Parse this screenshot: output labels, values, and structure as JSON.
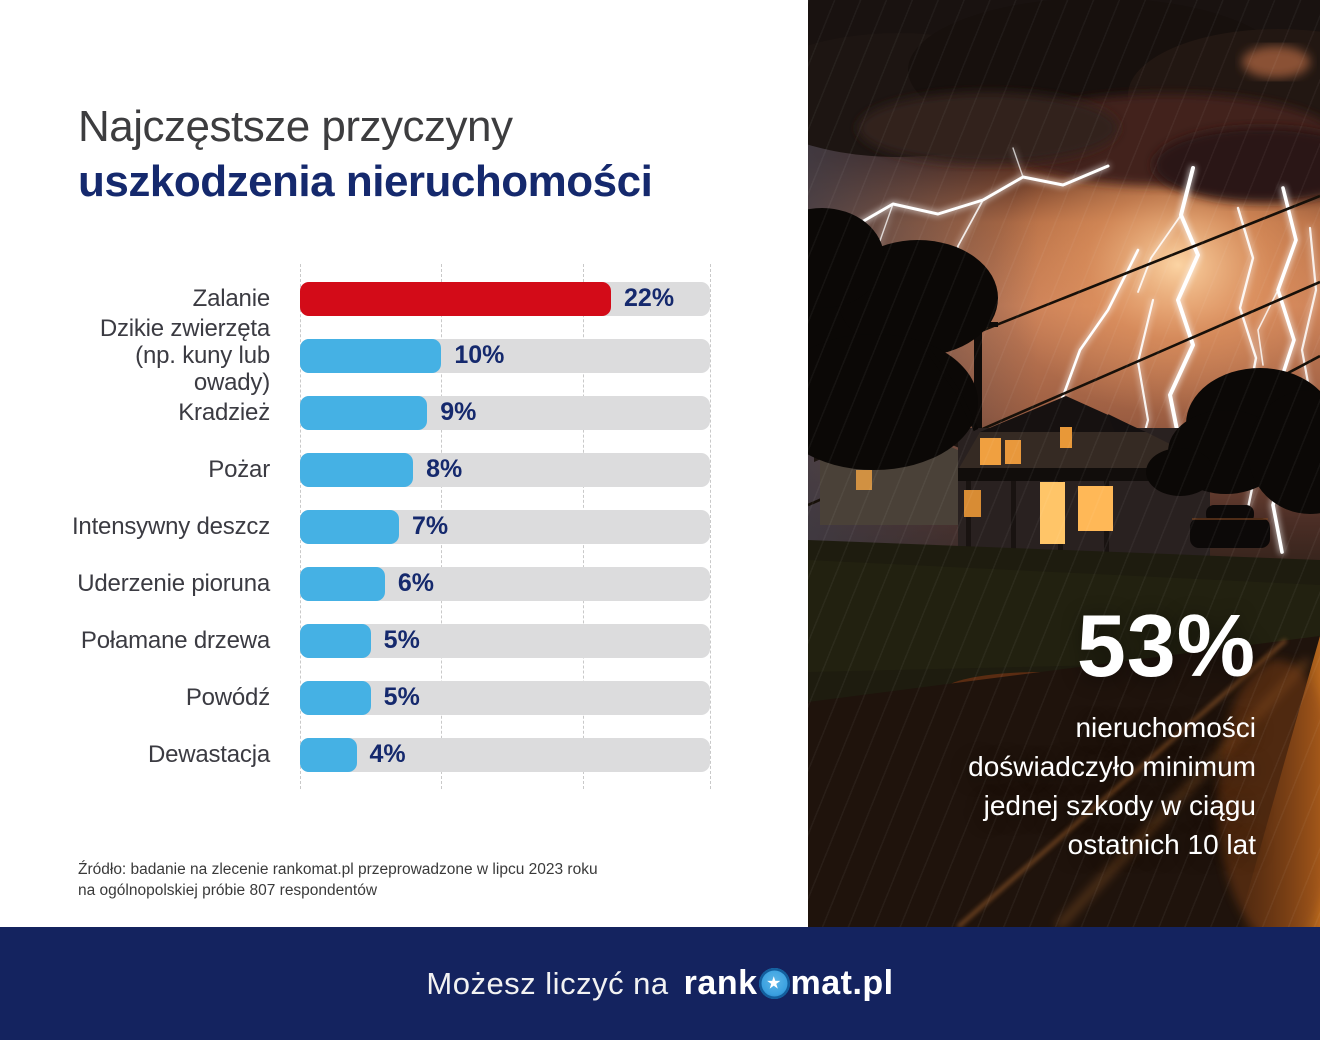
{
  "title": {
    "line1": "Najczęstsze przyczyny",
    "line2": "uszkodzenia nieruchomości"
  },
  "chart_data": {
    "type": "bar",
    "orientation": "horizontal",
    "title": "Najczęstsze przyczyny uszkodzenia nieruchomości",
    "categories": [
      "Zalanie",
      "Dzikie zwierzęta (np. kuny lub owady)",
      "Kradzież",
      "Pożar",
      "Intensywny deszcz",
      "Uderzenie pioruna",
      "Połamane drzewa",
      "Powódź",
      "Dewastacja"
    ],
    "values": [
      22,
      10,
      9,
      8,
      7,
      6,
      5,
      5,
      4
    ],
    "unit": "%",
    "xlim": [
      0,
      29
    ],
    "grid": "dashed-vertical-quarters",
    "legend": "none",
    "highlight_index": 0,
    "rows": [
      {
        "label_lines": [
          "Zalanie"
        ],
        "value": 22,
        "display": "22%"
      },
      {
        "label_lines": [
          "Dzikie zwierzęta",
          "(np. kuny lub owady)"
        ],
        "value": 10,
        "display": "10%"
      },
      {
        "label_lines": [
          "Kradzież"
        ],
        "value": 9,
        "display": "9%"
      },
      {
        "label_lines": [
          "Pożar"
        ],
        "value": 8,
        "display": "8%"
      },
      {
        "label_lines": [
          "Intensywny deszcz"
        ],
        "value": 7,
        "display": "7%"
      },
      {
        "label_lines": [
          "Uderzenie pioruna"
        ],
        "value": 6,
        "display": "6%"
      },
      {
        "label_lines": [
          "Połamane drzewa"
        ],
        "value": 5,
        "display": "5%"
      },
      {
        "label_lines": [
          "Powódź"
        ],
        "value": 5,
        "display": "5%"
      },
      {
        "label_lines": [
          "Dewastacja"
        ],
        "value": 4,
        "display": "4%"
      }
    ],
    "colors": {
      "highlight_bar": "#d30b18",
      "default_bar": "#45b1e4",
      "track": "#dcdcdd",
      "value_label": "#15296d",
      "gridline": "#c9c9c9",
      "category_label": "#3b3b42"
    }
  },
  "source": {
    "line1": "Źródło: badanie na zlecenie rankomat.pl przeprowadzone w lipcu 2023 roku",
    "line2": "na ogólnopolskiej próbie 807 respondentów"
  },
  "photo_overlay": {
    "stat_value": "53%",
    "stat_lines": [
      "nieruchomości",
      "doświadczyło minimum",
      "jednej szkody w ciągu",
      "ostatnich 10 lat"
    ],
    "photo_description": "night thunderstorm with lightning over a house"
  },
  "footer": {
    "tagline": "Możesz liczyć na",
    "brand_prefix": "rank",
    "brand_suffix": "mat.pl",
    "star_icon": "★",
    "background": "#14235f"
  },
  "theme": {
    "title_navy": "#15296d",
    "title_gray": "#3d3d3f",
    "panel_background": "#ffffff"
  }
}
